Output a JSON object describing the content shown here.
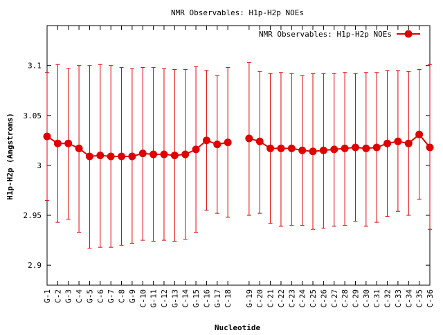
{
  "chart_data": {
    "type": "line",
    "title": "NMR Observables: H1p-H2p NOEs",
    "xlabel": "Nucleotide",
    "ylabel": "H1p-H2p (Angstroms)",
    "ylim": [
      2.88,
      3.14
    ],
    "yticks": [
      {
        "value": 2.9,
        "label": "2.9"
      },
      {
        "value": 2.95,
        "label": "2.95"
      },
      {
        "value": 3.0,
        "label": "3"
      },
      {
        "value": 3.05,
        "label": "3.05"
      },
      {
        "value": 3.1,
        "label": "3.1"
      }
    ],
    "x_range": [
      1,
      36
    ],
    "legend": {
      "label": "NMR Observables: H1p-H2p NOEs",
      "position": "top-right"
    },
    "grid": false,
    "color": "#e00000",
    "series": [
      {
        "name": "NMR Observables: H1p-H2p NOEs",
        "points": [
          {
            "x": 1,
            "label": "G-1",
            "y": 3.029,
            "low": 2.965,
            "high": 3.093
          },
          {
            "x": 2,
            "label": "C-2",
            "y": 3.022,
            "low": 2.943,
            "high": 3.101
          },
          {
            "x": 3,
            "label": "G-3",
            "y": 3.022,
            "low": 2.946,
            "high": 3.097
          },
          {
            "x": 4,
            "label": "C-4",
            "y": 3.017,
            "low": 2.933,
            "high": 3.1
          },
          {
            "x": 5,
            "label": "G-5",
            "y": 3.009,
            "low": 2.917,
            "high": 3.1
          },
          {
            "x": 6,
            "label": "C-6",
            "y": 3.01,
            "low": 2.918,
            "high": 3.101
          },
          {
            "x": 7,
            "label": "G-7",
            "y": 3.009,
            "low": 2.918,
            "high": 3.1
          },
          {
            "x": 8,
            "label": "C-8",
            "y": 3.009,
            "low": 2.92,
            "high": 3.098
          },
          {
            "x": 9,
            "label": "G-9",
            "y": 3.009,
            "low": 2.922,
            "high": 3.097
          },
          {
            "x": 10,
            "label": "C-10",
            "y": 3.012,
            "low": 2.925,
            "high": 3.098
          },
          {
            "x": 11,
            "label": "G-11",
            "y": 3.011,
            "low": 2.924,
            "high": 3.098
          },
          {
            "x": 12,
            "label": "C-12",
            "y": 3.011,
            "low": 2.925,
            "high": 3.097
          },
          {
            "x": 13,
            "label": "G-13",
            "y": 3.01,
            "low": 2.924,
            "high": 3.096
          },
          {
            "x": 14,
            "label": "C-14",
            "y": 3.011,
            "low": 2.926,
            "high": 3.096
          },
          {
            "x": 15,
            "label": "G-15",
            "y": 3.016,
            "low": 2.933,
            "high": 3.099
          },
          {
            "x": 16,
            "label": "C-16",
            "y": 3.025,
            "low": 2.955,
            "high": 3.095
          },
          {
            "x": 17,
            "label": "G-17",
            "y": 3.021,
            "low": 2.952,
            "high": 3.09
          },
          {
            "x": 18,
            "label": "C-18",
            "y": 3.023,
            "low": 2.948,
            "high": 3.098
          },
          {
            "x": 20,
            "label": "G-19",
            "y": 3.027,
            "low": 2.95,
            "high": 3.103
          },
          {
            "x": 21,
            "label": "C-20",
            "y": 3.024,
            "low": 2.952,
            "high": 3.094
          },
          {
            "x": 22,
            "label": "C-21",
            "y": 3.017,
            "low": 2.942,
            "high": 3.092
          },
          {
            "x": 23,
            "label": "C-22",
            "y": 3.017,
            "low": 2.939,
            "high": 3.093
          },
          {
            "x": 24,
            "label": "C-23",
            "y": 3.017,
            "low": 2.94,
            "high": 3.092
          },
          {
            "x": 25,
            "label": "C-24",
            "y": 3.015,
            "low": 2.94,
            "high": 3.09
          },
          {
            "x": 26,
            "label": "C-25",
            "y": 3.014,
            "low": 2.936,
            "high": 3.092
          },
          {
            "x": 27,
            "label": "C-26",
            "y": 3.015,
            "low": 2.937,
            "high": 3.092
          },
          {
            "x": 28,
            "label": "C-27",
            "y": 3.016,
            "low": 2.939,
            "high": 3.092
          },
          {
            "x": 29,
            "label": "C-28",
            "y": 3.017,
            "low": 2.94,
            "high": 3.093
          },
          {
            "x": 30,
            "label": "C-29",
            "y": 3.018,
            "low": 2.944,
            "high": 3.092
          },
          {
            "x": 31,
            "label": "C-30",
            "y": 3.017,
            "low": 2.939,
            "high": 3.093
          },
          {
            "x": 32,
            "label": "C-31",
            "y": 3.018,
            "low": 2.943,
            "high": 3.093
          },
          {
            "x": 33,
            "label": "C-32",
            "y": 3.022,
            "low": 2.949,
            "high": 3.095
          },
          {
            "x": 34,
            "label": "C-33",
            "y": 3.024,
            "low": 2.954,
            "high": 3.095
          },
          {
            "x": 35,
            "label": "C-34",
            "y": 3.022,
            "low": 2.95,
            "high": 3.094
          },
          {
            "x": 36,
            "label": "C-35",
            "y": 3.031,
            "low": 2.966,
            "high": 3.096
          },
          {
            "x": 37,
            "label": "C-36",
            "y": 3.018,
            "low": 2.936,
            "high": 3.101
          }
        ]
      }
    ]
  }
}
